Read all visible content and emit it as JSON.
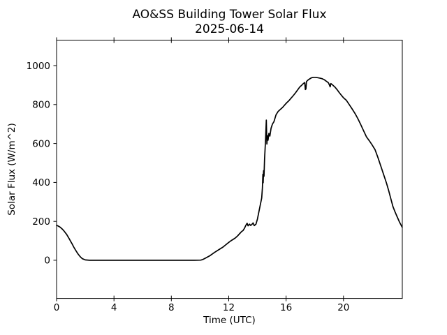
{
  "figure": {
    "background": "#ffffff"
  },
  "chart_data": {
    "type": "line",
    "title": "AO&SS Building Tower Solar Flux",
    "subtitle": "2025-06-14",
    "xlabel": "Time (UTC)",
    "ylabel": "Solar Flux (W/m^2)",
    "xlim": [
      0,
      24.1
    ],
    "ylim": [
      -196,
      1131
    ],
    "xticks": [
      0,
      4,
      8,
      12,
      16,
      20
    ],
    "yticks": [
      0,
      200,
      400,
      600,
      800,
      1000
    ],
    "grid": false,
    "legend_visible": false,
    "line_color": "#000000",
    "axis_color": "#000000",
    "background_color": "#ffffff",
    "series": [
      {
        "name": "Solar Flux",
        "points": [
          [
            0,
            180
          ],
          [
            0.1,
            176
          ],
          [
            0.25,
            170
          ],
          [
            0.4,
            160
          ],
          [
            0.5,
            152
          ],
          [
            0.6,
            143
          ],
          [
            0.7,
            133
          ],
          [
            0.8,
            121
          ],
          [
            0.9,
            108
          ],
          [
            1.0,
            95
          ],
          [
            1.1,
            82
          ],
          [
            1.2,
            68
          ],
          [
            1.3,
            55
          ],
          [
            1.4,
            43
          ],
          [
            1.5,
            32
          ],
          [
            1.65,
            18
          ],
          [
            1.8,
            8
          ],
          [
            2.0,
            2
          ],
          [
            2.3,
            0
          ],
          [
            3.0,
            0
          ],
          [
            4.0,
            0
          ],
          [
            5.0,
            0
          ],
          [
            6.0,
            0
          ],
          [
            7.0,
            0
          ],
          [
            8.0,
            0
          ],
          [
            9.0,
            0
          ],
          [
            9.6,
            0
          ],
          [
            10.05,
            1
          ],
          [
            10.2,
            4
          ],
          [
            10.4,
            12
          ],
          [
            10.7,
            24
          ],
          [
            11.0,
            40
          ],
          [
            11.3,
            54
          ],
          [
            11.6,
            68
          ],
          [
            11.8,
            80
          ],
          [
            12.0,
            92
          ],
          [
            12.15,
            100
          ],
          [
            12.3,
            107
          ],
          [
            12.45,
            114
          ],
          [
            12.6,
            124
          ],
          [
            12.75,
            136
          ],
          [
            12.9,
            148
          ],
          [
            13.0,
            153
          ],
          [
            13.1,
            165
          ],
          [
            13.2,
            180
          ],
          [
            13.28,
            190
          ],
          [
            13.35,
            177
          ],
          [
            13.45,
            186
          ],
          [
            13.52,
            179
          ],
          [
            13.6,
            183
          ],
          [
            13.7,
            192
          ],
          [
            13.78,
            178
          ],
          [
            13.9,
            186
          ],
          [
            14.0,
            212
          ],
          [
            14.1,
            248
          ],
          [
            14.2,
            285
          ],
          [
            14.3,
            320
          ],
          [
            14.35,
            372
          ],
          [
            14.38,
            442
          ],
          [
            14.4,
            398
          ],
          [
            14.43,
            460
          ],
          [
            14.46,
            432
          ],
          [
            14.5,
            520
          ],
          [
            14.56,
            610
          ],
          [
            14.62,
            720
          ],
          [
            14.66,
            597
          ],
          [
            14.7,
            640
          ],
          [
            14.74,
            617
          ],
          [
            14.8,
            652
          ],
          [
            14.87,
            638
          ],
          [
            14.95,
            678
          ],
          [
            15.05,
            700
          ],
          [
            15.15,
            712
          ],
          [
            15.3,
            748
          ],
          [
            15.45,
            765
          ],
          [
            15.6,
            775
          ],
          [
            15.75,
            785
          ],
          [
            15.9,
            798
          ],
          [
            16.05,
            810
          ],
          [
            16.2,
            820
          ],
          [
            16.35,
            833
          ],
          [
            16.5,
            846
          ],
          [
            16.65,
            860
          ],
          [
            16.8,
            875
          ],
          [
            16.95,
            890
          ],
          [
            17.1,
            900
          ],
          [
            17.2,
            908
          ],
          [
            17.3,
            913
          ],
          [
            17.34,
            877
          ],
          [
            17.38,
            880
          ],
          [
            17.42,
            918
          ],
          [
            17.5,
            924
          ],
          [
            17.6,
            930
          ],
          [
            17.75,
            937
          ],
          [
            17.9,
            940
          ],
          [
            18.05,
            940
          ],
          [
            18.2,
            938
          ],
          [
            18.35,
            936
          ],
          [
            18.5,
            933
          ],
          [
            18.65,
            928
          ],
          [
            18.8,
            920
          ],
          [
            18.95,
            912
          ],
          [
            19.02,
            900
          ],
          [
            19.07,
            891
          ],
          [
            19.12,
            908
          ],
          [
            19.25,
            900
          ],
          [
            19.4,
            890
          ],
          [
            19.55,
            877
          ],
          [
            19.7,
            862
          ],
          [
            19.85,
            848
          ],
          [
            20.0,
            835
          ],
          [
            20.2,
            822
          ],
          [
            20.4,
            800
          ],
          [
            20.6,
            778
          ],
          [
            20.8,
            755
          ],
          [
            21.0,
            728
          ],
          [
            21.2,
            698
          ],
          [
            21.4,
            666
          ],
          [
            21.6,
            634
          ],
          [
            21.8,
            614
          ],
          [
            22.0,
            592
          ],
          [
            22.2,
            568
          ],
          [
            22.4,
            528
          ],
          [
            22.6,
            484
          ],
          [
            22.8,
            440
          ],
          [
            23.0,
            396
          ],
          [
            23.15,
            358
          ],
          [
            23.3,
            316
          ],
          [
            23.45,
            276
          ],
          [
            23.6,
            248
          ],
          [
            23.75,
            222
          ],
          [
            23.9,
            197
          ],
          [
            24.09,
            170
          ]
        ]
      }
    ]
  }
}
